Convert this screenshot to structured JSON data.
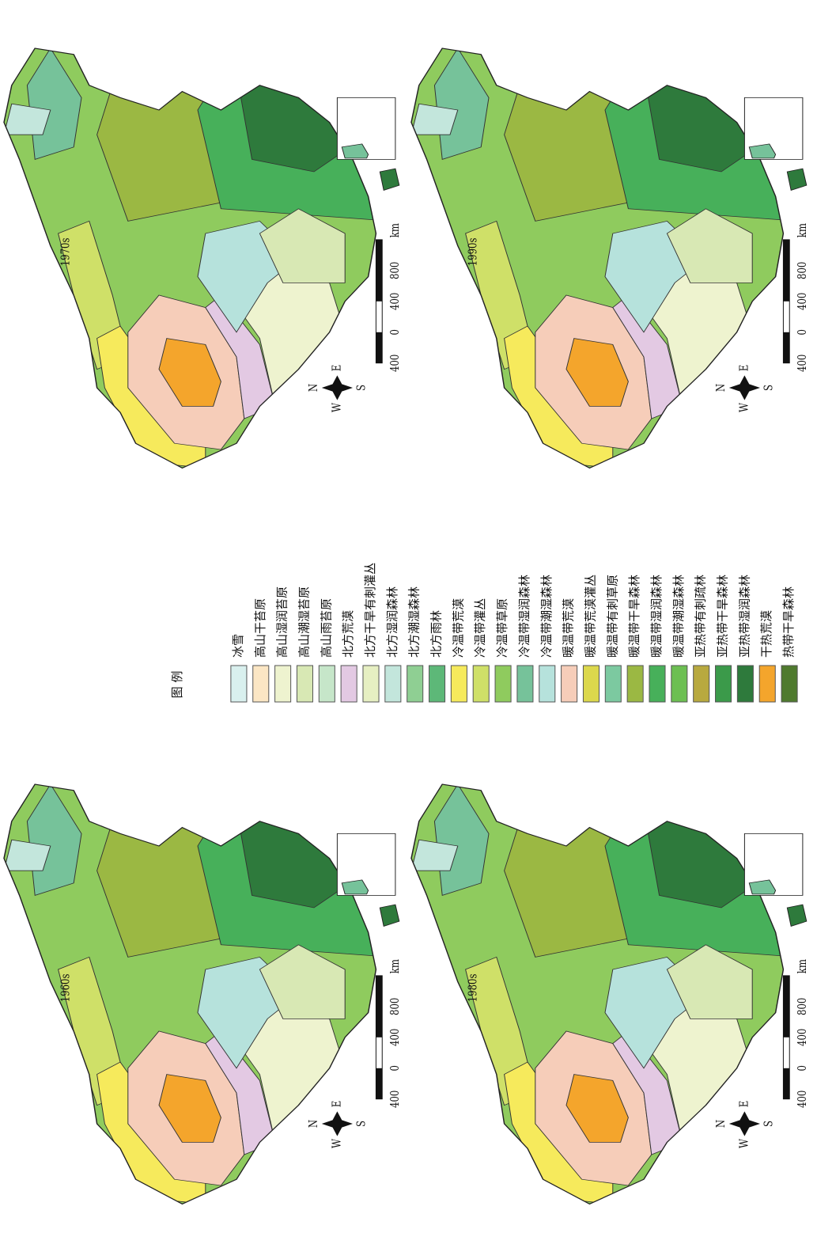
{
  "maps": [
    {
      "title": "1960s",
      "scale": [
        "400",
        "0",
        "400",
        "800",
        "km"
      ],
      "compass": [
        "N",
        "S",
        "W",
        "E"
      ]
    },
    {
      "title": "1970s",
      "scale": [
        "400",
        "0",
        "400",
        "800",
        "km"
      ],
      "compass": [
        "N",
        "S",
        "W",
        "E"
      ]
    },
    {
      "title": "1980s",
      "scale": [
        "400",
        "0",
        "400",
        "800",
        "km"
      ],
      "compass": [
        "N",
        "S",
        "W",
        "E"
      ]
    },
    {
      "title": "1990s",
      "scale": [
        "400",
        "0",
        "400",
        "800",
        "km"
      ],
      "compass": [
        "N",
        "S",
        "W",
        "E"
      ]
    }
  ],
  "legend": {
    "title": "图 例",
    "items": [
      {
        "label": "冰雪",
        "color": "#d9f0ee"
      },
      {
        "label": "高山干苔原",
        "color": "#fbe6c4"
      },
      {
        "label": "高山湿润苔原",
        "color": "#eef3cf"
      },
      {
        "label": "高山潮湿苔原",
        "color": "#d8e8b4"
      },
      {
        "label": "高山雨苔原",
        "color": "#c6e6c9"
      },
      {
        "label": "北方荒漠",
        "color": "#e3c9e3"
      },
      {
        "label": "北方干旱有刺灌丛",
        "color": "#e6efc2"
      },
      {
        "label": "北方湿润森林",
        "color": "#c3e6dc"
      },
      {
        "label": "北方潮湿森林",
        "color": "#8fcf93"
      },
      {
        "label": "北方雨林",
        "color": "#5db878"
      },
      {
        "label": "冷温带荒漠",
        "color": "#f6ea5c"
      },
      {
        "label": "冷温带灌丛",
        "color": "#cfe068"
      },
      {
        "label": "冷温带草原",
        "color": "#8fcb5e"
      },
      {
        "label": "冷温带湿润森林",
        "color": "#76c29a"
      },
      {
        "label": "冷温带潮湿森林",
        "color": "#b6e2dc"
      },
      {
        "label": "暖温带荒漠",
        "color": "#f6cdb9"
      },
      {
        "label": "暖温带荒漠灌丛",
        "color": "#dcd84c"
      },
      {
        "label": "暖温带有刺草原",
        "color": "#7cc9a0"
      },
      {
        "label": "暖温带干旱森林",
        "color": "#9bb843"
      },
      {
        "label": "暖温带湿润森林",
        "color": "#47b05a"
      },
      {
        "label": "暖温带潮湿森林",
        "color": "#6cbf52"
      },
      {
        "label": "亚热带有刺疏林",
        "color": "#b8a93f"
      },
      {
        "label": "亚热带干旱森林",
        "color": "#3b9a4a"
      },
      {
        "label": "亚热带湿润森林",
        "color": "#2e7a3c"
      },
      {
        "label": "干热荒漠",
        "color": "#f4a52c"
      },
      {
        "label": "热带干旱森林",
        "color": "#4f7a2e"
      }
    ]
  }
}
